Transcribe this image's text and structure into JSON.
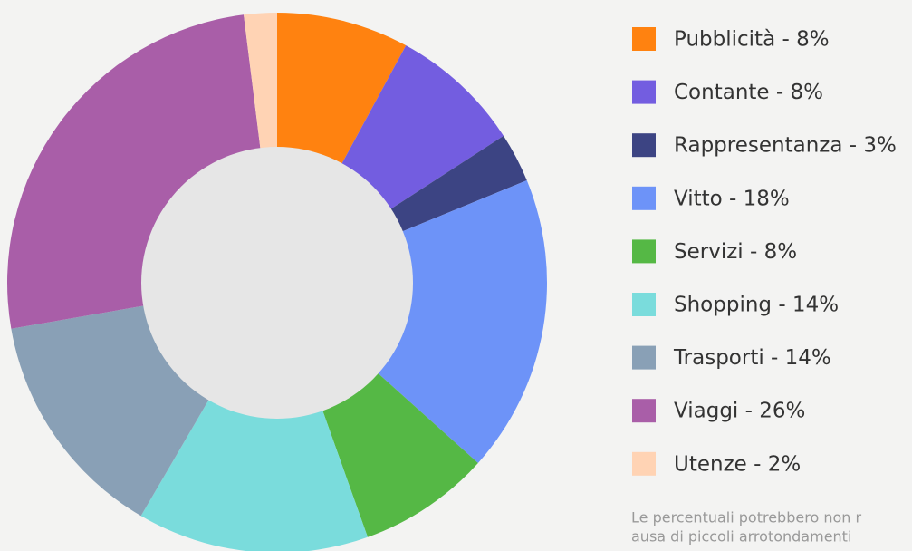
{
  "chart_data": {
    "type": "donut",
    "categories": [
      "Pubblicità - 8%",
      "Contante - 8%",
      "Rappresentanza - 3%",
      "Vitto - 18%",
      "Servizi - 8%",
      "Shopping - 14%",
      "Trasporti - 14%",
      "Viaggi - 26%",
      "Utenze - 2%"
    ],
    "values": [
      8,
      8,
      3,
      18,
      8,
      14,
      14,
      26,
      2
    ],
    "colors": [
      "#ff8210",
      "#735de0",
      "#3c4483",
      "#6d93f8",
      "#55b845",
      "#7adcdc",
      "#89a0b6",
      "#a95ea8",
      "#ffd3b4"
    ],
    "legend": "right",
    "note": [
      "Le percentuali potrebbero non r",
      "ausa di piccoli arrotondamenti"
    ]
  }
}
